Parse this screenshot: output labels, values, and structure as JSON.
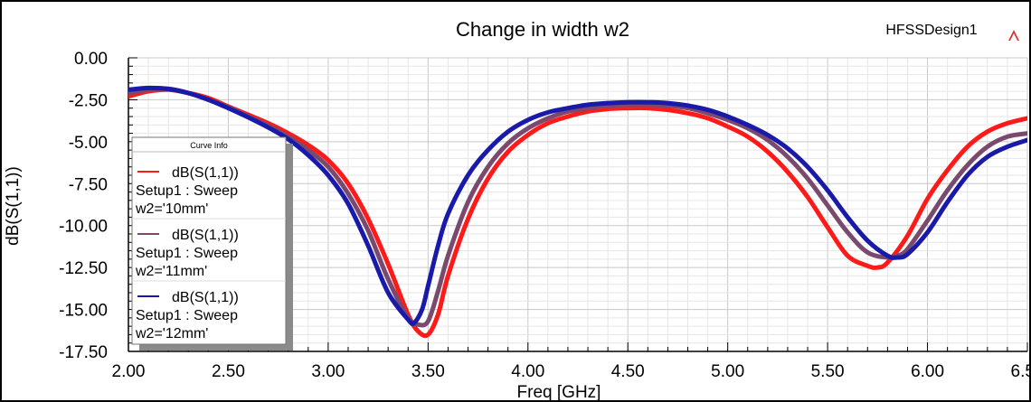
{
  "design_name": "HFSSDesign1",
  "chart_data": {
    "type": "line",
    "title": "Change in width w2",
    "xlabel": "Freq [GHz]",
    "ylabel": "dB(S(1,1))",
    "xlim": [
      2.0,
      6.5
    ],
    "ylim": [
      -17.5,
      0.0
    ],
    "xticks": [
      "2.00",
      "2.50",
      "3.00",
      "3.50",
      "4.00",
      "4.50",
      "5.00",
      "5.50",
      "6.00",
      "6.50"
    ],
    "yticks": [
      "0.00",
      "-2.50",
      "-5.00",
      "-7.50",
      "-10.00",
      "-12.50",
      "-15.00",
      "-17.50"
    ],
    "grid": true,
    "legend": {
      "title": "Curve Info",
      "placement": "left",
      "entries": [
        {
          "line1": "dB(S(1,1))",
          "line2": "Setup1 : Sweep",
          "line3": "w2='10mm'"
        },
        {
          "line1": "dB(S(1,1))",
          "line2": "Setup1 : Sweep",
          "line3": "w2='11mm'"
        },
        {
          "line1": "dB(S(1,1))",
          "line2": "Setup1 : Sweep",
          "line3": "w2='12mm'"
        }
      ]
    },
    "series": [
      {
        "color": "#ff1a1a",
        "x": [
          2.0,
          2.1,
          2.2,
          2.3,
          2.4,
          2.5,
          2.6,
          2.7,
          2.8,
          2.9,
          3.0,
          3.1,
          3.2,
          3.3,
          3.4,
          3.45,
          3.5,
          3.55,
          3.6,
          3.7,
          3.8,
          3.9,
          4.0,
          4.1,
          4.2,
          4.3,
          4.4,
          4.5,
          4.6,
          4.7,
          4.8,
          4.9,
          5.0,
          5.1,
          5.2,
          5.3,
          5.4,
          5.5,
          5.6,
          5.7,
          5.75,
          5.8,
          5.9,
          6.0,
          6.1,
          6.2,
          6.3,
          6.4,
          6.5
        ],
        "y": [
          -2.3,
          -2.0,
          -1.9,
          -2.1,
          -2.4,
          -2.9,
          -3.4,
          -3.9,
          -4.5,
          -5.2,
          -6.1,
          -7.5,
          -9.6,
          -12.3,
          -15.3,
          -16.3,
          -16.5,
          -15.3,
          -13.0,
          -9.6,
          -7.2,
          -5.6,
          -4.6,
          -3.9,
          -3.5,
          -3.2,
          -3.05,
          -3.0,
          -3.0,
          -3.1,
          -3.3,
          -3.6,
          -4.1,
          -4.7,
          -5.6,
          -6.8,
          -8.3,
          -10.1,
          -11.8,
          -12.4,
          -12.5,
          -12.2,
          -10.6,
          -8.4,
          -6.7,
          -5.3,
          -4.4,
          -3.9,
          -3.6
        ]
      },
      {
        "color": "#7a4a6e",
        "x": [
          2.0,
          2.1,
          2.2,
          2.3,
          2.4,
          2.5,
          2.6,
          2.7,
          2.8,
          2.9,
          3.0,
          3.1,
          3.2,
          3.3,
          3.4,
          3.45,
          3.5,
          3.55,
          3.6,
          3.7,
          3.8,
          3.9,
          4.0,
          4.1,
          4.2,
          4.3,
          4.4,
          4.5,
          4.6,
          4.7,
          4.8,
          4.9,
          5.0,
          5.1,
          5.2,
          5.3,
          5.4,
          5.5,
          5.6,
          5.7,
          5.8,
          5.85,
          5.9,
          6.0,
          6.1,
          6.2,
          6.3,
          6.4,
          6.5
        ],
        "y": [
          -2.1,
          -1.9,
          -1.85,
          -2.1,
          -2.5,
          -2.95,
          -3.5,
          -4.05,
          -4.7,
          -5.5,
          -6.5,
          -8.1,
          -10.3,
          -13.2,
          -15.5,
          -15.9,
          -15.7,
          -13.9,
          -11.8,
          -8.6,
          -6.5,
          -5.1,
          -4.2,
          -3.6,
          -3.2,
          -3.0,
          -2.85,
          -2.8,
          -2.8,
          -2.85,
          -3.0,
          -3.3,
          -3.7,
          -4.2,
          -4.9,
          -5.9,
          -7.2,
          -8.8,
          -10.4,
          -11.6,
          -11.9,
          -11.8,
          -11.4,
          -9.7,
          -7.9,
          -6.4,
          -5.3,
          -4.7,
          -4.5
        ]
      },
      {
        "color": "#1a1aaa",
        "x": [
          2.0,
          2.1,
          2.2,
          2.3,
          2.4,
          2.5,
          2.6,
          2.7,
          2.8,
          2.9,
          3.0,
          3.1,
          3.2,
          3.3,
          3.4,
          3.43,
          3.47,
          3.5,
          3.55,
          3.6,
          3.7,
          3.8,
          3.9,
          4.0,
          4.1,
          4.2,
          4.3,
          4.4,
          4.5,
          4.6,
          4.7,
          4.8,
          4.9,
          5.0,
          5.1,
          5.2,
          5.3,
          5.4,
          5.5,
          5.6,
          5.7,
          5.8,
          5.85,
          5.9,
          6.0,
          6.1,
          6.2,
          6.3,
          6.4,
          6.5
        ],
        "y": [
          -1.9,
          -1.8,
          -1.85,
          -2.1,
          -2.5,
          -3.0,
          -3.55,
          -4.15,
          -4.85,
          -5.8,
          -7.0,
          -8.7,
          -11.2,
          -14.0,
          -15.6,
          -15.8,
          -15.0,
          -13.6,
          -11.2,
          -9.3,
          -7.0,
          -5.5,
          -4.4,
          -3.7,
          -3.25,
          -3.0,
          -2.8,
          -2.7,
          -2.65,
          -2.65,
          -2.7,
          -2.85,
          -3.1,
          -3.5,
          -4.0,
          -4.6,
          -5.4,
          -6.5,
          -7.9,
          -9.5,
          -10.9,
          -11.8,
          -11.9,
          -11.7,
          -10.4,
          -8.6,
          -7.0,
          -5.9,
          -5.3,
          -4.9
        ]
      }
    ]
  }
}
